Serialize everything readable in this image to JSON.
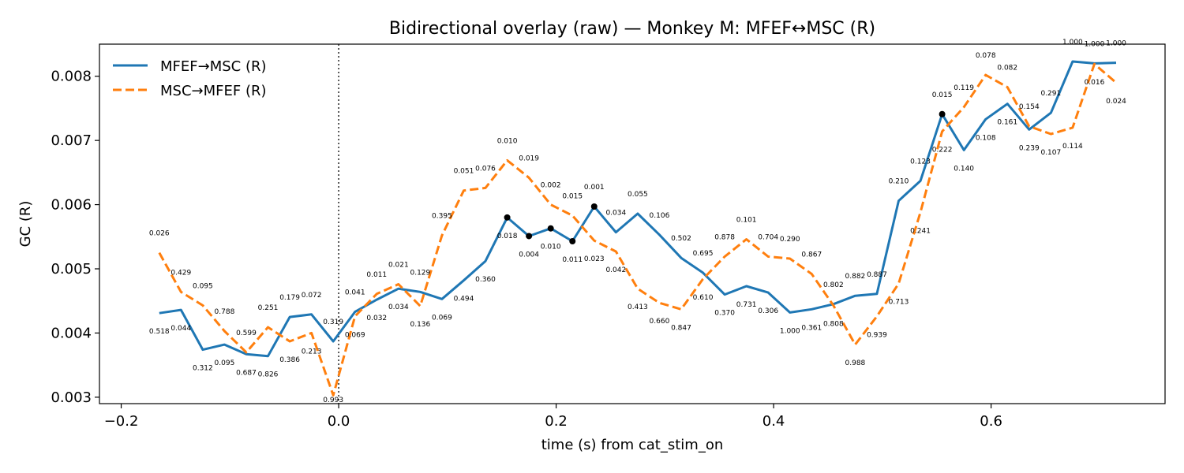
{
  "chart_data": {
    "type": "line",
    "title": "Bidirectional overlay (raw) — Monkey M: MFEF↔MSC (R)",
    "xlabel": "time (s) from cat_stim_on",
    "ylabel": "GC (R)",
    "xlim": [
      -0.22,
      0.76
    ],
    "ylim": [
      0.0029,
      0.0085
    ],
    "xticks": [
      -0.2,
      0.0,
      0.2,
      0.4,
      0.6
    ],
    "xtick_labels": [
      "−0.2",
      "0.0",
      "0.2",
      "0.4",
      "0.6"
    ],
    "yticks": [
      0.003,
      0.004,
      0.005,
      0.006,
      0.007,
      0.008
    ],
    "ytick_labels": [
      "0.003",
      "0.004",
      "0.005",
      "0.006",
      "0.007",
      "0.008"
    ],
    "vline_x": 0.0,
    "grid": false,
    "legend_position": "upper-left",
    "x": [
      -0.165,
      -0.145,
      -0.125,
      -0.105,
      -0.085,
      -0.065,
      -0.045,
      -0.025,
      -0.005,
      0.015,
      0.035,
      0.055,
      0.075,
      0.095,
      0.115,
      0.135,
      0.155,
      0.175,
      0.195,
      0.215,
      0.235,
      0.255,
      0.275,
      0.295,
      0.315,
      0.335,
      0.355,
      0.375,
      0.395,
      0.415,
      0.435,
      0.455,
      0.475,
      0.495,
      0.515,
      0.535,
      0.555,
      0.575,
      0.595,
      0.615,
      0.635,
      0.655,
      0.675,
      0.695,
      0.715
    ],
    "series": [
      {
        "name": "MFEF→MSC (R)",
        "color": "#1f77b4",
        "style": "solid",
        "values": [
          0.00431,
          0.00436,
          0.00374,
          0.00382,
          0.00367,
          0.00364,
          0.00425,
          0.00429,
          0.00387,
          0.00433,
          0.00452,
          0.00469,
          0.00464,
          0.00453,
          0.00482,
          0.00512,
          0.0058,
          0.00551,
          0.00563,
          0.00543,
          0.00597,
          0.00557,
          0.00586,
          0.00553,
          0.00517,
          0.00494,
          0.0046,
          0.00473,
          0.00463,
          0.00432,
          0.00437,
          0.00445,
          0.00458,
          0.00461,
          0.00606,
          0.00637,
          0.00741,
          0.00685,
          0.00733,
          0.00757,
          0.00717,
          0.00743,
          0.00823,
          0.0082,
          0.00821
        ],
        "pvalues": [
          "0.518",
          "0.044",
          "0.312",
          "0.095",
          "0.687",
          "0.826",
          "0.179",
          "0.072",
          "0.319",
          "0.041",
          "0.032",
          "0.034",
          "0.129",
          "0.069",
          "0.494",
          "0.360",
          "0.018",
          "0.004",
          "0.010",
          "0.011",
          "0.001",
          "0.034",
          "0.055",
          "0.106",
          "0.502",
          "0.695",
          "0.370",
          "0.731",
          "0.306",
          "1.000",
          "0.361",
          "0.802",
          "0.882",
          "0.887",
          "0.210",
          "0.123",
          "0.015",
          "0.140",
          "0.108",
          "0.161",
          "0.239",
          "0.291",
          "1.000",
          "1.000",
          "1.000"
        ],
        "significant_markers": [
          0.155,
          0.175,
          0.195,
          0.215,
          0.235,
          0.555
        ]
      },
      {
        "name": "MSC→MFEF (R)",
        "color": "#ff7f0e",
        "style": "dashed",
        "values": [
          0.00525,
          0.00464,
          0.00443,
          0.00403,
          0.0037,
          0.00409,
          0.00387,
          0.004,
          0.00303,
          0.00426,
          0.00461,
          0.00476,
          0.00442,
          0.00552,
          0.00622,
          0.00626,
          0.00669,
          0.00642,
          0.006,
          0.00583,
          0.00544,
          0.00527,
          0.00469,
          0.00447,
          0.00437,
          0.00484,
          0.00519,
          0.00546,
          0.00519,
          0.00516,
          0.00492,
          0.00443,
          0.00382,
          0.00426,
          0.00477,
          0.00588,
          0.00714,
          0.00752,
          0.00802,
          0.00783,
          0.00722,
          0.0071,
          0.0072,
          0.00819,
          0.0079
        ],
        "pvalues": [
          "0.026",
          "0.429",
          "0.095",
          "0.788",
          "0.599",
          "0.251",
          "0.386",
          "0.213",
          "0.993",
          "0.069",
          "0.011",
          "0.021",
          "0.136",
          "0.395",
          "0.051",
          "0.076",
          "0.010",
          "0.019",
          "0.002",
          "0.015",
          "0.023",
          "0.042",
          "0.413",
          "0.660",
          "0.847",
          "0.610",
          "0.878",
          "0.101",
          "0.704",
          "0.290",
          "0.867",
          "0.808",
          "0.988",
          "0.939",
          "0.713",
          "0.241",
          "0.222",
          "0.119",
          "0.078",
          "0.082",
          "0.154",
          "0.107",
          "0.114",
          "0.016",
          "0.024"
        ]
      }
    ]
  }
}
